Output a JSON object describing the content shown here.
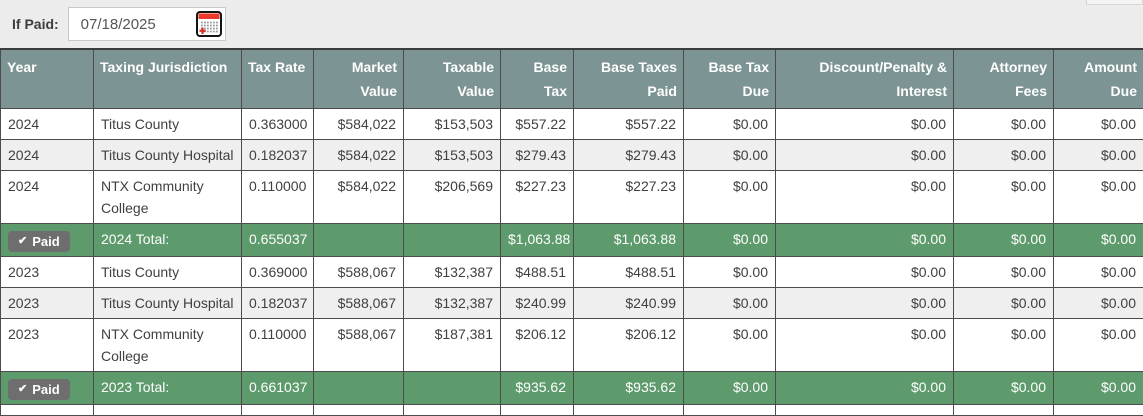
{
  "theme": {
    "header-bg": "#7d9494",
    "total-bg": "#5d9a6c",
    "alt-row-bg": "#efefef",
    "badge-bg": "#6e6e6e",
    "calendar-red": "#e8392a"
  },
  "controls": {
    "if_paid_label": "If Paid:",
    "date_value": "07/18/2025",
    "calendar_icon": "calendar-icon"
  },
  "table": {
    "columns": [
      {
        "key": "year",
        "label": "Year",
        "align": "left"
      },
      {
        "key": "taxing-jurisdiction",
        "label": "Taxing Jurisdiction",
        "align": "left"
      },
      {
        "key": "tax-rate",
        "label": "Tax Rate",
        "align": "left"
      },
      {
        "key": "market-value",
        "label": "Market Value",
        "align": "right"
      },
      {
        "key": "taxable-value",
        "label": "Taxable Value",
        "align": "right"
      },
      {
        "key": "base-tax",
        "label": "Base Tax",
        "align": "right"
      },
      {
        "key": "base-taxes-paid",
        "label": "Base Taxes Paid",
        "align": "right"
      },
      {
        "key": "base-tax-due",
        "label": "Base Tax Due",
        "align": "right"
      },
      {
        "key": "discount-penalty-interest",
        "label": "Discount/Penalty & Interest",
        "align": "right"
      },
      {
        "key": "attorney-fees",
        "label": "Attorney Fees",
        "align": "right"
      },
      {
        "key": "amount-due",
        "label": "Amount Due",
        "align": "right"
      }
    ],
    "rows": [
      {
        "type": "data",
        "alt": false,
        "cells": [
          "2024",
          "Titus County",
          "0.363000",
          "$584,022",
          "$153,503",
          "$557.22",
          "$557.22",
          "$0.00",
          "$0.00",
          "$0.00",
          "$0.00"
        ]
      },
      {
        "type": "data",
        "alt": true,
        "cells": [
          "2024",
          "Titus County Hospital",
          "0.182037",
          "$584,022",
          "$153,503",
          "$279.43",
          "$279.43",
          "$0.00",
          "$0.00",
          "$0.00",
          "$0.00"
        ]
      },
      {
        "type": "data",
        "alt": false,
        "cells": [
          "2024",
          "NTX Community College",
          "0.110000",
          "$584,022",
          "$206,569",
          "$227.23",
          "$227.23",
          "$0.00",
          "$0.00",
          "$0.00",
          "$0.00"
        ]
      },
      {
        "type": "total",
        "badge": "Paid",
        "badge_icon": "✔",
        "cells": [
          "",
          "2024 Total:",
          "0.655037",
          "",
          "",
          "$1,063.88",
          "$1,063.88",
          "$0.00",
          "$0.00",
          "$0.00",
          "$0.00"
        ]
      },
      {
        "type": "data",
        "alt": false,
        "cells": [
          "2023",
          "Titus County",
          "0.369000",
          "$588,067",
          "$132,387",
          "$488.51",
          "$488.51",
          "$0.00",
          "$0.00",
          "$0.00",
          "$0.00"
        ]
      },
      {
        "type": "data",
        "alt": true,
        "cells": [
          "2023",
          "Titus County Hospital",
          "0.182037",
          "$588,067",
          "$132,387",
          "$240.99",
          "$240.99",
          "$0.00",
          "$0.00",
          "$0.00",
          "$0.00"
        ]
      },
      {
        "type": "data",
        "alt": false,
        "cells": [
          "2023",
          "NTX Community College",
          "0.110000",
          "$588,067",
          "$187,381",
          "$206.12",
          "$206.12",
          "$0.00",
          "$0.00",
          "$0.00",
          "$0.00"
        ]
      },
      {
        "type": "total",
        "badge": "Paid",
        "badge_icon": "✔",
        "cells": [
          "",
          "2023 Total:",
          "0.661037",
          "",
          "",
          "$935.62",
          "$935.62",
          "$0.00",
          "$0.00",
          "$0.00",
          "$0.00"
        ]
      },
      {
        "type": "stub",
        "cells": [
          "",
          "",
          "",
          "",
          "",
          "",
          "",
          "",
          "",
          "",
          ""
        ]
      }
    ]
  }
}
